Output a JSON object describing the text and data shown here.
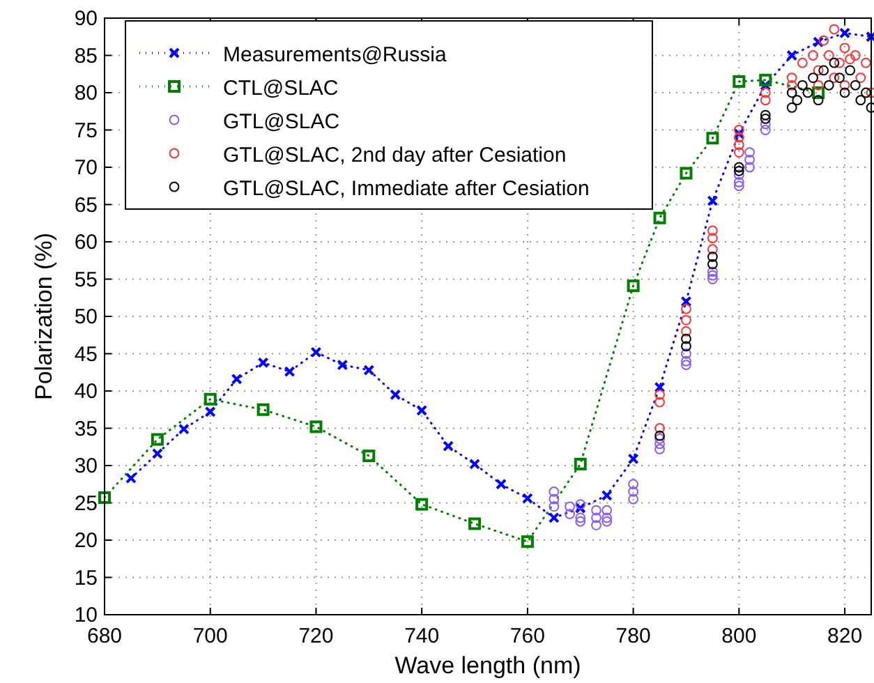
{
  "chart_data": {
    "type": "line",
    "xlabel": "Wave length (nm)",
    "ylabel": "Polarization (%)",
    "xlim": [
      680,
      825
    ],
    "ylim": [
      10,
      90
    ],
    "xticks": [
      680,
      700,
      720,
      740,
      760,
      780,
      800,
      820
    ],
    "yticks": [
      10,
      15,
      20,
      25,
      30,
      35,
      40,
      45,
      50,
      55,
      60,
      65,
      70,
      75,
      80,
      85,
      90
    ],
    "grid": true,
    "legend": "top left",
    "series": [
      {
        "name": "Measurements@Russia",
        "line_style": "dotted",
        "marker": "cross",
        "color": "#0000ff",
        "x": [
          685,
          690,
          695,
          700,
          705,
          710,
          715,
          720,
          725,
          730,
          735,
          740,
          745,
          750,
          755,
          760,
          765,
          770,
          775,
          780,
          785,
          790,
          795,
          800,
          805,
          810,
          815,
          820,
          825
        ],
        "values": [
          28.3,
          31.6,
          34.9,
          37.2,
          41.6,
          43.8,
          42.6,
          45.2,
          43.5,
          42.8,
          39.5,
          37.4,
          32.6,
          30.2,
          27.5,
          25.6,
          23.0,
          24.3,
          26.0,
          30.9,
          40.5,
          52,
          65.5,
          74.5,
          81,
          85,
          86.8,
          88,
          87.5
        ]
      },
      {
        "name": "CTL@SLAC",
        "line_style": "dotted",
        "marker": "square",
        "color": "#008000",
        "x": [
          680,
          690,
          700,
          710,
          720,
          730,
          740,
          750,
          760,
          770,
          780,
          785,
          790,
          795,
          800,
          805,
          815
        ],
        "values": [
          25.7,
          33.5,
          38.9,
          37.5,
          35.2,
          31.3,
          24.8,
          22.2,
          19.8,
          30.2,
          54.1,
          63.2,
          69.2,
          73.9,
          81.5,
          81.7,
          80
        ]
      },
      {
        "name": "GTL@SLAC",
        "type": "scatter",
        "marker": "circle",
        "color": "#8a5cf5",
        "x": [
          765,
          765,
          765,
          768,
          768,
          770,
          770,
          770,
          773,
          773,
          773,
          775,
          775,
          775,
          780,
          780,
          780,
          785,
          785,
          785,
          790,
          790,
          790,
          795,
          795,
          795,
          800,
          800,
          800,
          802,
          802,
          802,
          805,
          805
        ],
        "values": [
          26.5,
          25.5,
          24.5,
          24.5,
          23.5,
          24.8,
          23,
          22.5,
          24,
          23,
          22,
          24,
          23,
          22.5,
          27.5,
          26.5,
          25.5,
          33.6,
          32.9,
          32.2,
          45,
          44,
          43.5,
          56,
          55.5,
          55,
          69,
          68,
          67.5,
          72,
          71,
          70,
          75.8,
          75
        ]
      },
      {
        "name": "GTL@SLAC, 2nd day after Cesiation",
        "type": "scatter",
        "marker": "circle",
        "color": "#ff3333",
        "x": [
          785,
          785,
          785,
          790,
          790,
          790,
          795,
          795,
          795,
          800,
          800,
          800,
          800,
          805,
          805,
          810,
          810,
          812,
          814,
          815,
          815,
          816,
          817,
          818,
          818,
          819,
          820,
          820,
          821,
          822,
          823,
          824,
          825
        ],
        "values": [
          35,
          38.5,
          39.5,
          51,
          49.5,
          48,
          61.5,
          60.5,
          59,
          75,
          74,
          73,
          72,
          80,
          79,
          81,
          82,
          84,
          85,
          83,
          81,
          87,
          85,
          88.5,
          82,
          84,
          86,
          81,
          84.5,
          85,
          82,
          84,
          80
        ]
      },
      {
        "name": "GTL@SLAC, Immediate after Cesiation",
        "type": "scatter",
        "marker": "circle",
        "color": "#000000",
        "x": [
          785,
          790,
          790,
          795,
          795,
          800,
          800,
          805,
          805,
          810,
          810,
          811,
          812,
          813,
          814,
          815,
          816,
          817,
          818,
          819,
          820,
          821,
          822,
          823,
          824,
          825
        ],
        "values": [
          34,
          47,
          46,
          58,
          57,
          70,
          69.5,
          77,
          76.5,
          78,
          80,
          79,
          81,
          80,
          82,
          79,
          83,
          81,
          84,
          82,
          80,
          83,
          81,
          79,
          80,
          78
        ]
      }
    ]
  }
}
